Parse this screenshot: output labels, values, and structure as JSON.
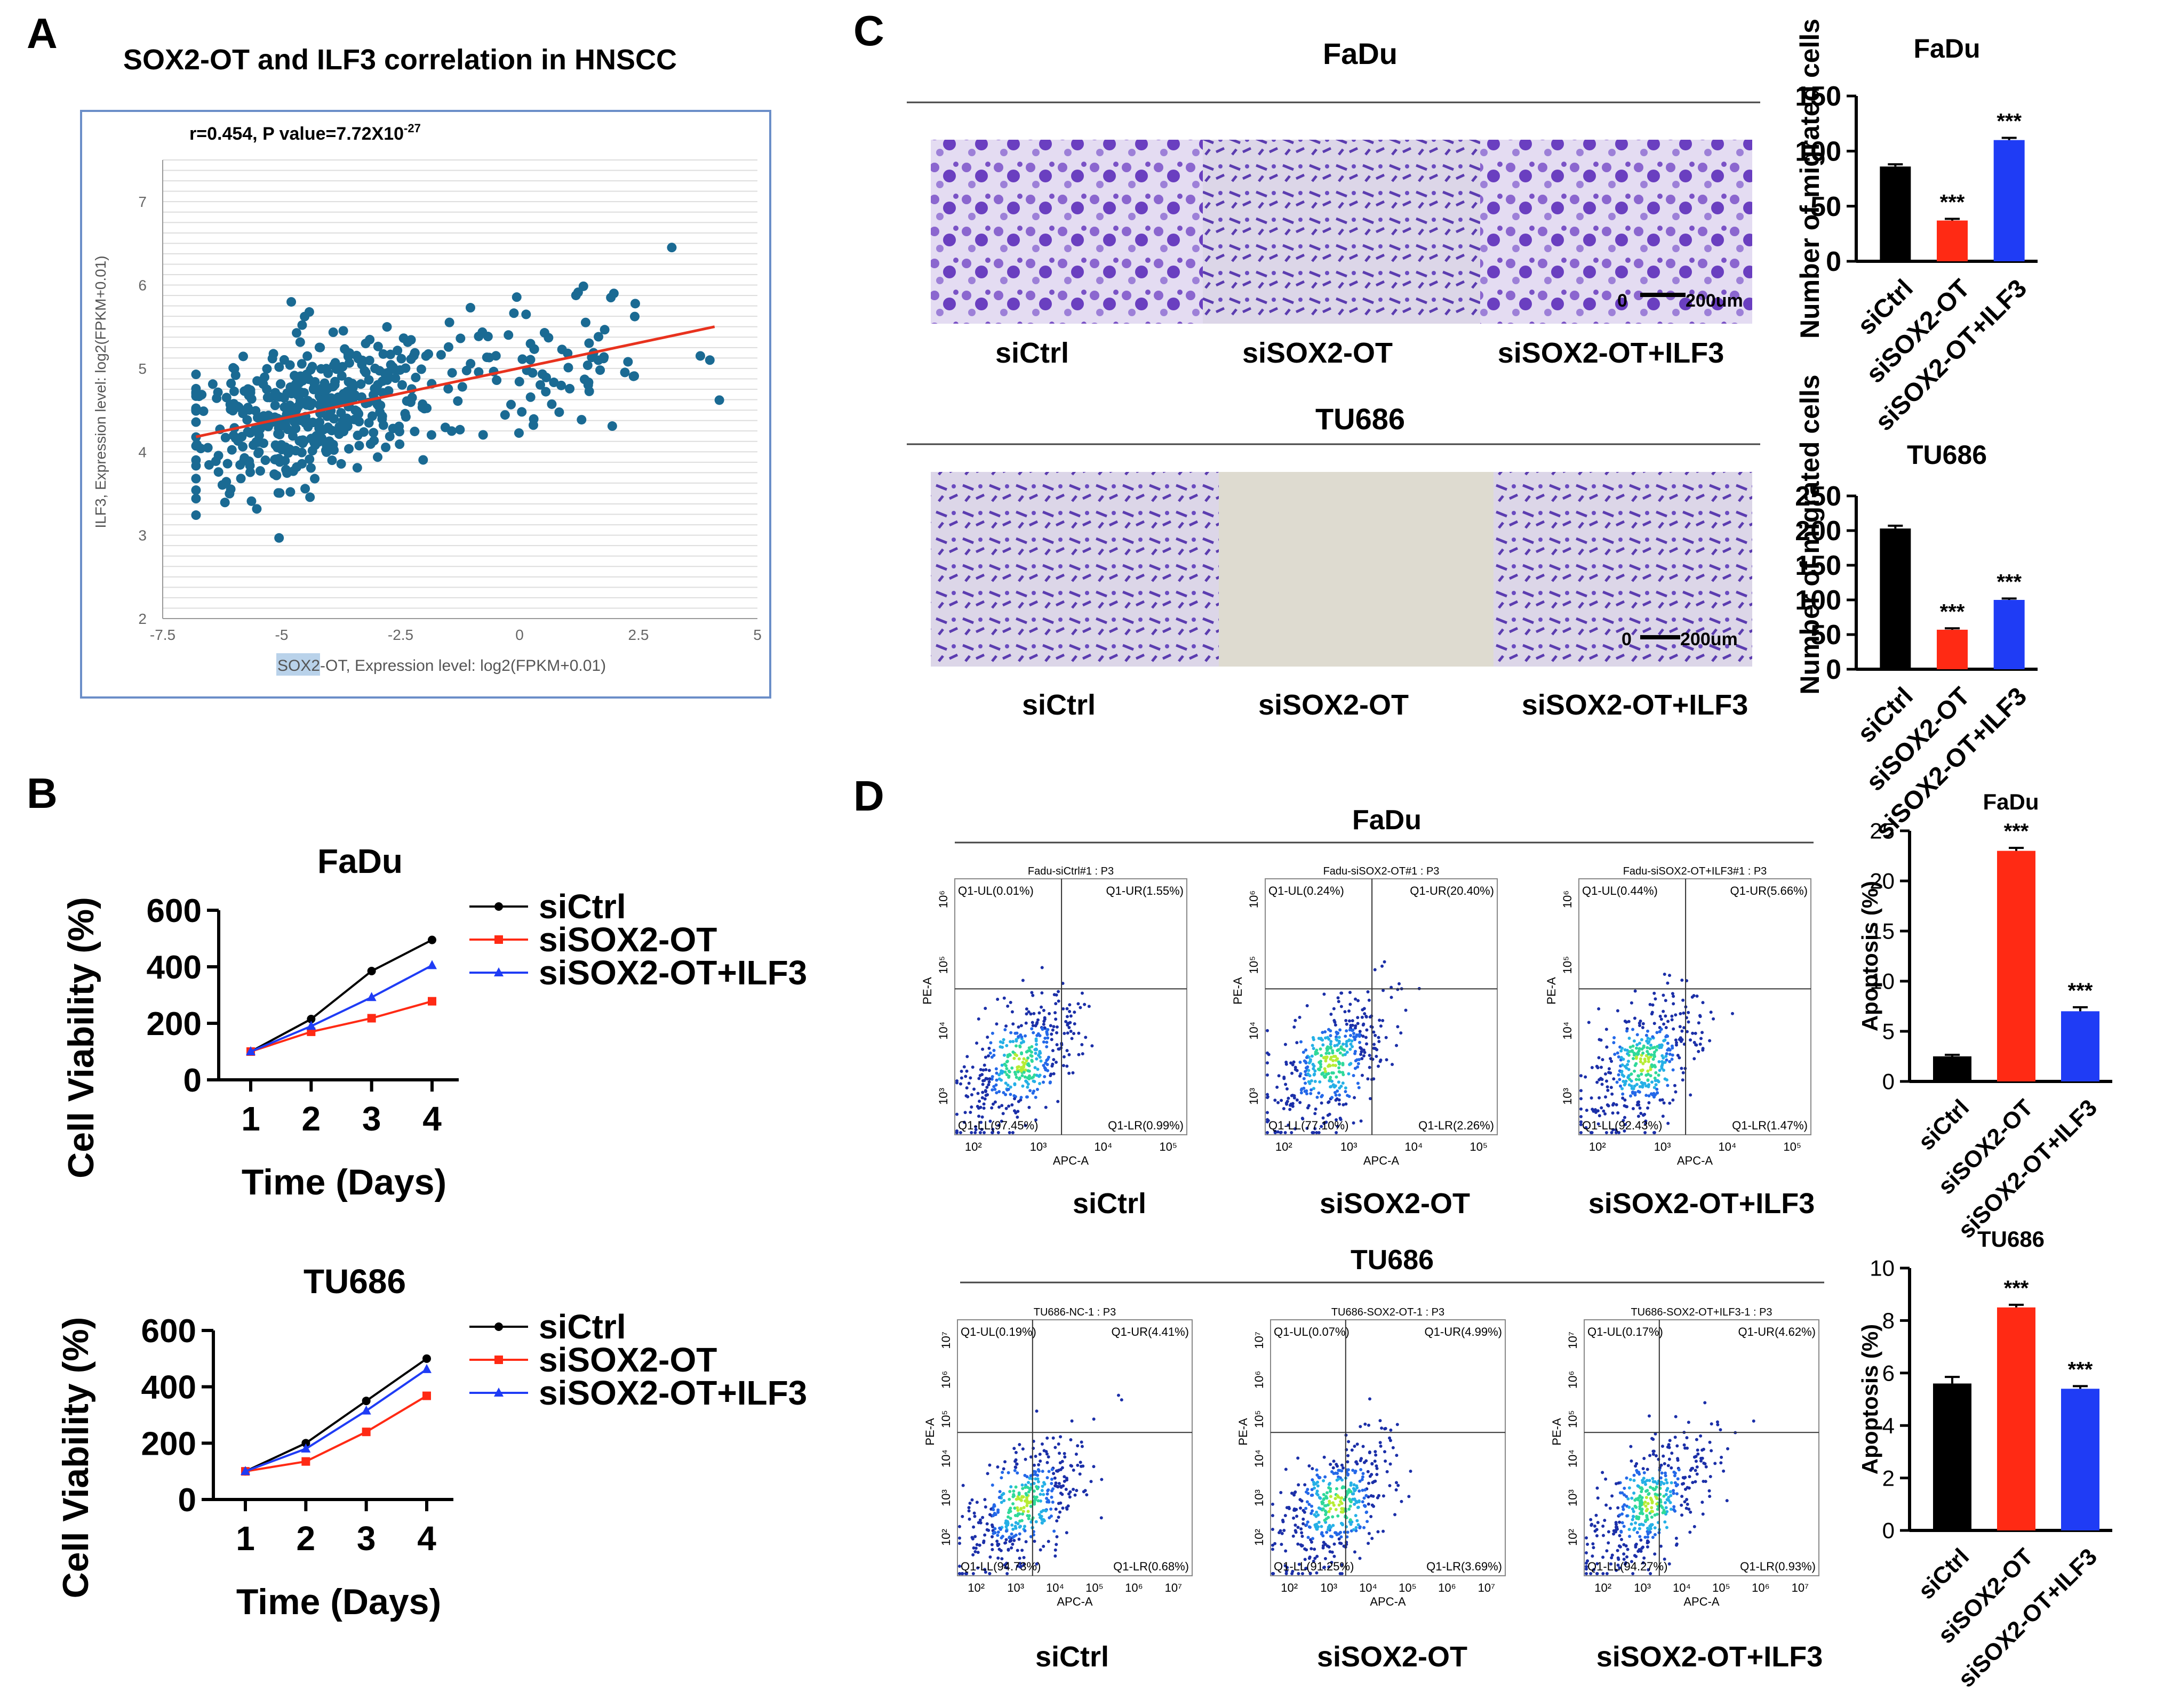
{
  "panels": {
    "A": {
      "letter": "A",
      "title": "SOX2-OT and ILF3 correlation in HNSCC",
      "stat": "r=0.454, P value=7.72X10",
      "stat_exp": "-27",
      "xlabel_highlight": "SOX2",
      "xlabel_rest": "-OT, Expression level: log2(FPKM+0.01)",
      "ylabel": "ILF3, Expression level: log2(FPKM+0.01)",
      "xticks": [
        "-7.5",
        "-5",
        "-2.5",
        "0",
        "2.5",
        "5"
      ],
      "yticks": [
        "2",
        "3",
        "4",
        "5",
        "6",
        "7"
      ]
    },
    "B": {
      "letter": "B",
      "ylabel": "Cell Viability (%)",
      "xlabel": "Time (Days)",
      "legend": [
        "siCtrl",
        "siSOX2-OT",
        "siSOX2-OT+ILF3"
      ]
    },
    "C": {
      "letter": "C",
      "fadu_title": "FaDu",
      "tu686_title": "TU686",
      "image_labels": [
        "siCtrl",
        "siSOX2-OT",
        "siSOX2-OT+ILF3"
      ],
      "scale_zero": "0",
      "scale_label": "200um"
    },
    "D": {
      "letter": "D",
      "fadu_title": "FaDu",
      "tu686_title": "TU686",
      "labels": [
        "siCtrl",
        "siSOX2-OT",
        "siSOX2-OT+ILF3"
      ],
      "xaxis": "APC-A",
      "yaxis": "PE-A",
      "fadu_plots": [
        {
          "title": "Fadu-siCtrl#1 : P3",
          "ul": "Q1-UL(0.01%)",
          "ur": "Q1-UR(1.55%)",
          "ll": "Q1-LL(97.45%)",
          "lr": "Q1-LR(0.99%)"
        },
        {
          "title": "Fadu-siSOX2-OT#1 : P3",
          "ul": "Q1-UL(0.24%)",
          "ur": "Q1-UR(20.40%)",
          "ll": "Q1-LL(77.10%)",
          "lr": "Q1-LR(2.26%)"
        },
        {
          "title": "Fadu-siSOX2-OT+ILF3#1 : P3",
          "ul": "Q1-UL(0.44%)",
          "ur": "Q1-UR(5.66%)",
          "ll": "Q1-LL(92.43%)",
          "lr": "Q1-LR(1.47%)"
        }
      ],
      "tu_plots": [
        {
          "title": "TU686-NC-1 : P3",
          "ul": "Q1-UL(0.19%)",
          "ur": "Q1-UR(4.41%)",
          "ll": "Q1-LL(94.73%)",
          "lr": "Q1-LR(0.68%)"
        },
        {
          "title": "TU686-SOX2-OT-1 : P3",
          "ul": "Q1-UL(0.07%)",
          "ur": "Q1-UR(4.99%)",
          "ll": "Q1-LL(91.25%)",
          "lr": "Q1-LR(3.69%)"
        },
        {
          "title": "TU686-SOX2-OT+ILF3-1 : P3",
          "ul": "Q1-UL(0.17%)",
          "ur": "Q1-UR(4.62%)",
          "ll": "Q1-LL(94.27%)",
          "lr": "Q1-LR(0.93%)"
        }
      ],
      "fadu_xticks": [
        "10²",
        "10³",
        "10⁴",
        "10⁵"
      ],
      "fadu_yticks": [
        "10³",
        "10⁴",
        "10⁵",
        "10⁶"
      ],
      "tu_xticks": [
        "10²",
        "10³",
        "10⁴",
        "10⁵",
        "10⁶",
        "10⁷"
      ],
      "tu_yticks": [
        "10²",
        "10³",
        "10⁴",
        "10⁵",
        "10⁶",
        "10⁷"
      ]
    }
  },
  "colors": {
    "black": "#000000",
    "red": "#ff2a14",
    "blue": "#1f3cf5",
    "scatter": "#1a6a93",
    "trend": "#e8321e",
    "highlight": "#b9d2ea",
    "stain": "#6a3fc0"
  },
  "chart_data": [
    {
      "id": "A-scatter",
      "type": "scatter",
      "title": "SOX2-OT and ILF3 correlation in HNSCC",
      "xlabel": "SOX2-OT, Expression level: log2(FPKM+0.01)",
      "ylabel": "ILF3, Expression level: log2(FPKM+0.01)",
      "xlim": [
        -7.5,
        5
      ],
      "ylim": [
        2,
        7.5
      ],
      "trendline": {
        "x": [
          -6.8,
          4.1
        ],
        "y": [
          4.18,
          5.5
        ]
      },
      "n_points": 500,
      "grid": true
    },
    {
      "id": "B-fadu",
      "type": "line",
      "title": "FaDu",
      "xlabel": "Time (Days)",
      "ylabel": "Cell Viability (%)",
      "x": [
        1,
        2,
        3,
        4
      ],
      "ylim": [
        0,
        600
      ],
      "yticks": [
        0,
        200,
        400,
        600
      ],
      "series": [
        {
          "name": "siCtrl",
          "values": [
            100,
            215,
            385,
            495
          ]
        },
        {
          "name": "siSOX2-OT",
          "values": [
            100,
            170,
            218,
            278
          ]
        },
        {
          "name": "siSOX2-OT+ILF3",
          "values": [
            100,
            190,
            292,
            405
          ]
        }
      ]
    },
    {
      "id": "B-tu686",
      "type": "line",
      "title": "TU686",
      "xlabel": "Time (Days)",
      "ylabel": "Cell Viability (%)",
      "x": [
        1,
        2,
        3,
        4
      ],
      "ylim": [
        0,
        600
      ],
      "yticks": [
        0,
        200,
        400,
        600
      ],
      "series": [
        {
          "name": "siCtrl",
          "values": [
            100,
            200,
            350,
            500
          ]
        },
        {
          "name": "siSOX2-OT",
          "values": [
            100,
            135,
            240,
            368
          ]
        },
        {
          "name": "siSOX2-OT+ILF3",
          "values": [
            100,
            180,
            315,
            462
          ]
        }
      ]
    },
    {
      "id": "C-fadu",
      "type": "bar",
      "title": "FaDu",
      "ylabel": "Number of migrated cells",
      "categories": [
        "siCtrl",
        "siSOX2-OT",
        "siSOX2-OT+ILF3"
      ],
      "values": [
        86,
        37,
        110
      ],
      "errors": [
        2,
        1.5,
        2
      ],
      "annotations": [
        "",
        "***",
        "***"
      ],
      "ylim": [
        0,
        150
      ],
      "yticks": [
        0,
        50,
        100,
        150
      ]
    },
    {
      "id": "C-tu686",
      "type": "bar",
      "title": "TU686",
      "ylabel": "Number of migrated cells",
      "categories": [
        "siCtrl",
        "siSOX2-OT",
        "siSOX2-OT+ILF3"
      ],
      "values": [
        203,
        57,
        100
      ],
      "errors": [
        4,
        2,
        2
      ],
      "annotations": [
        "",
        "***",
        "***"
      ],
      "ylim": [
        0,
        250
      ],
      "yticks": [
        0,
        50,
        100,
        150,
        200,
        250
      ]
    },
    {
      "id": "D-fadu",
      "type": "bar",
      "title": "FaDu",
      "ylabel": "Apoptosis (%)",
      "categories": [
        "siCtrl",
        "siSOX2-OT",
        "siSOX2-OT+ILF3"
      ],
      "values": [
        2.5,
        23,
        7
      ],
      "errors": [
        0.15,
        0.3,
        0.4
      ],
      "annotations": [
        "",
        "***",
        "***"
      ],
      "ylim": [
        0,
        25
      ],
      "yticks": [
        0,
        5,
        10,
        15,
        20,
        25
      ]
    },
    {
      "id": "D-tu686",
      "type": "bar",
      "title": "TU686",
      "ylabel": "Apoptosis (%)",
      "categories": [
        "siCtrl",
        "siSOX2-OT",
        "siSOX2-OT+ILF3"
      ],
      "values": [
        5.6,
        8.5,
        5.4
      ],
      "errors": [
        0.25,
        0.1,
        0.1
      ],
      "annotations": [
        "",
        "***",
        "***"
      ],
      "ylim": [
        0,
        10
      ],
      "yticks": [
        0,
        2,
        4,
        6,
        8,
        10
      ]
    }
  ]
}
